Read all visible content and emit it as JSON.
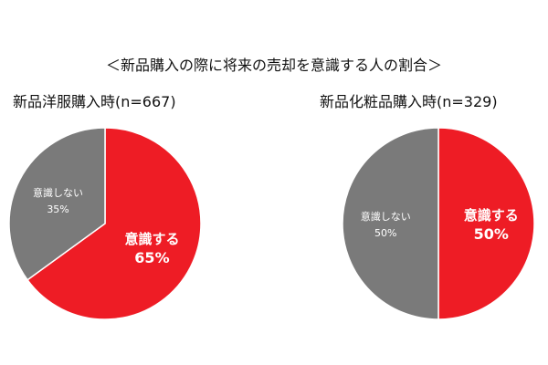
{
  "title": "＜新品購入の際に将来の売却を意識する人の割合＞",
  "colors": {
    "major": "#ee1c25",
    "minor": "#7a7a7a",
    "edge": "#ffffff"
  },
  "chart_data": [
    {
      "type": "pie",
      "title": "新品洋服購入時(n=667)",
      "slices": [
        {
          "label": "意識する",
          "pct_label": "65%",
          "value": 65,
          "color": "#ee1c25",
          "emphasis": true
        },
        {
          "label": "意識しない",
          "pct_label": "35%",
          "value": 35,
          "color": "#7a7a7a",
          "emphasis": false
        }
      ]
    },
    {
      "type": "pie",
      "title": "新品化粧品購入時(n=329)",
      "slices": [
        {
          "label": "意識する",
          "pct_label": "50%",
          "value": 50,
          "color": "#ee1c25",
          "emphasis": true
        },
        {
          "label": "意識しない",
          "pct_label": "50%",
          "value": 50,
          "color": "#7a7a7a",
          "emphasis": false
        }
      ]
    }
  ]
}
